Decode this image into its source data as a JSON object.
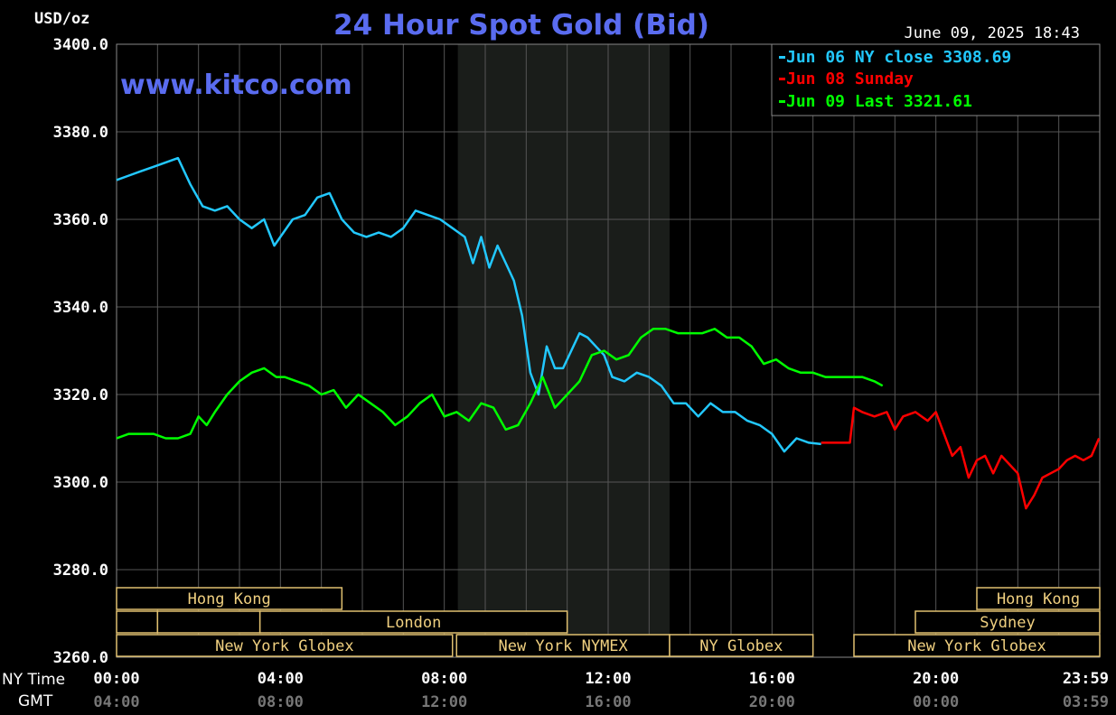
{
  "header": {
    "unit": "USD/oz",
    "title": "24 Hour Spot Gold (Bid)",
    "timestamp": "June 09, 2025 18:43",
    "watermark": "www.kitco.com"
  },
  "colors": {
    "background": "#000000",
    "grid": "#555555",
    "axis_text": "#ffffff",
    "title": "#5a6cf0",
    "jun06": "#22c8ff",
    "jun08": "#ff0000",
    "jun09": "#00ff00",
    "session_border": "#e0c070",
    "session_text": "#f0d080",
    "nymex_shade": "#1a1d1a",
    "gmt_text": "#777777"
  },
  "legend": [
    {
      "text": "Jun 06 NY close 3308.69",
      "color": "#22c8ff"
    },
    {
      "text": "Jun 08 Sunday",
      "color": "#ff0000"
    },
    {
      "text": "Jun 09 Last 3321.61",
      "color": "#00ff00"
    }
  ],
  "axis_labels": {
    "ny_time": "NY Time",
    "gmt": "GMT"
  },
  "chart_data": {
    "type": "line",
    "title": "24 Hour Spot Gold (Bid)",
    "ylabel": "USD/oz",
    "ylim": [
      3260,
      3400
    ],
    "xlim": [
      0,
      24
    ],
    "grid": true,
    "legend_position": "top-right",
    "y_ticks": [
      "3400.0",
      "3380.0",
      "3360.0",
      "3340.0",
      "3320.0",
      "3300.0",
      "3280.0",
      "3260.0"
    ],
    "y_tick_values": [
      3400,
      3380,
      3360,
      3340,
      3320,
      3300,
      3280,
      3260
    ],
    "x_ticks_ny": [
      "00:00",
      "04:00",
      "08:00",
      "12:00",
      "16:00",
      "20:00",
      "23:59"
    ],
    "x_ticks_gmt": [
      "04:00",
      "08:00",
      "12:00",
      "16:00",
      "20:00",
      "00:00",
      "03:59"
    ],
    "x_tick_hours": [
      0,
      4,
      8,
      12,
      16,
      20,
      23.983
    ],
    "nymex_shade_hours": [
      8.33,
      13.5
    ],
    "series": [
      {
        "name": "Jun 06 NY close 3308.69",
        "color": "#22c8ff",
        "x": [
          0,
          0.3,
          0.6,
          0.9,
          1.2,
          1.5,
          1.8,
          2.1,
          2.4,
          2.7,
          3.0,
          3.3,
          3.6,
          3.85,
          4.0,
          4.3,
          4.6,
          4.9,
          5.2,
          5.5,
          5.8,
          6.1,
          6.4,
          6.7,
          7.0,
          7.3,
          7.6,
          7.9,
          8.2,
          8.5,
          8.7,
          8.9,
          9.1,
          9.3,
          9.5,
          9.7,
          9.9,
          10.1,
          10.3,
          10.5,
          10.7,
          10.9,
          11.1,
          11.3,
          11.5,
          11.7,
          11.9,
          12.1,
          12.4,
          12.7,
          13.0,
          13.3,
          13.6,
          13.9,
          14.2,
          14.5,
          14.8,
          15.1,
          15.4,
          15.7,
          16.0,
          16.3,
          16.6,
          16.9,
          17.2
        ],
        "y": [
          3369,
          3370,
          3371,
          3372,
          3373,
          3374,
          3368,
          3363,
          3362,
          3363,
          3360,
          3358,
          3360,
          3354,
          3356,
          3360,
          3361,
          3365,
          3366,
          3360,
          3357,
          3356,
          3357,
          3356,
          3358,
          3362,
          3361,
          3360,
          3358,
          3356,
          3350,
          3356,
          3349,
          3354,
          3350,
          3346,
          3338,
          3325,
          3320,
          3331,
          3326,
          3326,
          3330,
          3334,
          3333,
          3331,
          3329,
          3324,
          3323,
          3325,
          3324,
          3322,
          3318,
          3318,
          3315,
          3318,
          3316,
          3316,
          3314,
          3313,
          3311,
          3307,
          3310,
          3309,
          3308.69
        ]
      },
      {
        "name": "Jun 08 Sunday",
        "color": "#ff0000",
        "x": [
          17.2,
          17.5,
          17.9,
          18.0,
          18.2,
          18.5,
          18.8,
          19.0,
          19.2,
          19.5,
          19.8,
          20.0,
          20.2,
          20.4,
          20.6,
          20.8,
          21.0,
          21.2,
          21.4,
          21.6,
          21.8,
          22.0,
          22.2,
          22.4,
          22.6,
          22.8,
          23.0,
          23.2,
          23.4,
          23.6,
          23.8,
          23.983
        ],
        "y": [
          3309,
          3309,
          3309,
          3317,
          3316,
          3315,
          3316,
          3312,
          3315,
          3316,
          3314,
          3316,
          3311,
          3306,
          3308,
          3301,
          3305,
          3306,
          3302,
          3306,
          3304,
          3302,
          3294,
          3297,
          3301,
          3302,
          3303,
          3305,
          3306,
          3305,
          3306,
          3310
        ]
      },
      {
        "name": "Jun 09 Last 3321.61",
        "color": "#00ff00",
        "x": [
          0,
          0.3,
          0.6,
          0.9,
          1.2,
          1.5,
          1.8,
          2.0,
          2.2,
          2.4,
          2.7,
          3.0,
          3.3,
          3.6,
          3.9,
          4.1,
          4.4,
          4.7,
          5.0,
          5.3,
          5.6,
          5.9,
          6.2,
          6.5,
          6.8,
          7.1,
          7.4,
          7.7,
          8.0,
          8.3,
          8.6,
          8.9,
          9.2,
          9.5,
          9.8,
          10.1,
          10.4,
          10.7,
          11.0,
          11.3,
          11.6,
          11.9,
          12.2,
          12.5,
          12.8,
          13.1,
          13.4,
          13.7,
          14.0,
          14.3,
          14.6,
          14.9,
          15.2,
          15.5,
          15.8,
          16.1,
          16.4,
          16.7,
          17.0,
          17.3,
          17.6,
          17.9,
          18.2,
          18.5,
          18.7
        ],
        "y": [
          3310,
          3311,
          3311,
          3311,
          3310,
          3310,
          3311,
          3315,
          3313,
          3316,
          3320,
          3323,
          3325,
          3326,
          3324,
          3324,
          3323,
          3322,
          3320,
          3321,
          3317,
          3320,
          3318,
          3316,
          3313,
          3315,
          3318,
          3320,
          3315,
          3316,
          3314,
          3318,
          3317,
          3312,
          3313,
          3318,
          3324,
          3317,
          3320,
          3323,
          3329,
          3330,
          3328,
          3329,
          3333,
          3335,
          3335,
          3334,
          3334,
          3334,
          3335,
          3333,
          3333,
          3331,
          3327,
          3328,
          3326,
          3325,
          3325,
          3324,
          3324,
          3324,
          3324,
          3323,
          3322
        ]
      }
    ],
    "sessions": [
      {
        "label": "Hong Kong",
        "start": 0,
        "end": 5.5,
        "row": 0
      },
      {
        "label": "",
        "start": 0,
        "end": 1.0,
        "row": 1
      },
      {
        "label": "",
        "start": 1.0,
        "end": 3.5,
        "row": 1
      },
      {
        "label": "London",
        "start": 3.5,
        "end": 11.0,
        "row": 1
      },
      {
        "label": "New York Globex",
        "start": 0,
        "end": 8.2,
        "row": 2
      },
      {
        "label": "New York NYMEX",
        "start": 8.3,
        "end": 13.5,
        "row": 2
      },
      {
        "label": "NY Globex",
        "start": 13.5,
        "end": 17.0,
        "row": 2
      },
      {
        "label": "Hong Kong",
        "start": 21.0,
        "end": 24.0,
        "row": 0
      },
      {
        "label": "Sydney",
        "start": 19.5,
        "end": 24.0,
        "row": 1
      },
      {
        "label": "New York Globex",
        "start": 18.0,
        "end": 24.0,
        "row": 2
      }
    ]
  }
}
